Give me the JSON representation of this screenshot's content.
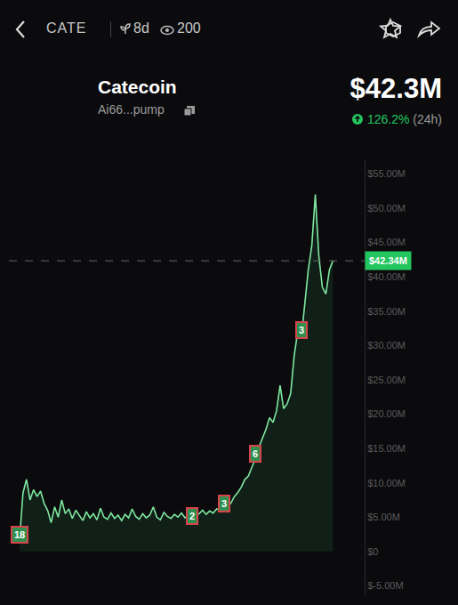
{
  "header": {
    "symbol": "CATE",
    "age": "8d",
    "views": "200",
    "name": "Catecoin",
    "address": "Ai66...pump",
    "market_cap": "$42.3M",
    "change": "126.2%",
    "period": "(24h)"
  },
  "chart_data": {
    "type": "line",
    "color": "#7ee8a0",
    "grid": false,
    "tick_labels": "y",
    "values": [
      1.5,
      8.5,
      10.5,
      7.5,
      9.0,
      8.0,
      8.8,
      7.0,
      6.0,
      4.2,
      6.5,
      5.0,
      7.5,
      5.5,
      6.2,
      4.8,
      6.0,
      5.2,
      4.5,
      5.8,
      4.9,
      5.5,
      4.6,
      6.3,
      5.0,
      4.7,
      5.6,
      4.8,
      5.3,
      4.5,
      5.4,
      4.9,
      6.2,
      5.1,
      4.7,
      5.5,
      4.9,
      5.3,
      6.5,
      5.0,
      4.6,
      5.7,
      5.1,
      4.8,
      5.4,
      5.0,
      5.6,
      4.9,
      5.3,
      5.8,
      5.2,
      5.5,
      6.0,
      5.4,
      5.9,
      5.6,
      6.2,
      6.0,
      6.6,
      7.2,
      7.0,
      8.0,
      8.6,
      9.4,
      10.5,
      11.0,
      12.3,
      13.5,
      15.2,
      16.5,
      17.8,
      19.5,
      18.8,
      20.5,
      24.2,
      20.8,
      21.5,
      23.0,
      28.5,
      32.0,
      31.0,
      36.0,
      41.0,
      44.5,
      52.0,
      43.0,
      38.5,
      37.5,
      41.0,
      42.34
    ],
    "ylim": [
      -6.5,
      57
    ],
    "yticks": [
      {
        "value": -5,
        "label": "$-5.00M"
      },
      {
        "value": 0,
        "label": "$0"
      },
      {
        "value": 5,
        "label": "$5.00M"
      },
      {
        "value": 10,
        "label": "$10.00M"
      },
      {
        "value": 15,
        "label": "$15.00M"
      },
      {
        "value": 20,
        "label": "$20.00M"
      },
      {
        "value": 25,
        "label": "$25.00M"
      },
      {
        "value": 30,
        "label": "$30.00M"
      },
      {
        "value": 35,
        "label": "$35.00M"
      },
      {
        "value": 40,
        "label": "$40.00M"
      },
      {
        "value": 45,
        "label": "$45.00M"
      },
      {
        "value": 50,
        "label": "$50.00M"
      },
      {
        "value": 55,
        "label": "$55.00M"
      }
    ],
    "annotations": [
      {
        "text": "18",
        "x": 0,
        "y": 2.4
      },
      {
        "text": "2",
        "x": 49,
        "y": 5.1
      },
      {
        "text": "3",
        "x": 58,
        "y": 7.0
      },
      {
        "text": "6",
        "x": 67,
        "y": 14.2
      },
      {
        "text": "3",
        "x": 80,
        "y": 32.3
      },
      {
        "text": "$42.34M",
        "y": 42.34
      }
    ]
  }
}
